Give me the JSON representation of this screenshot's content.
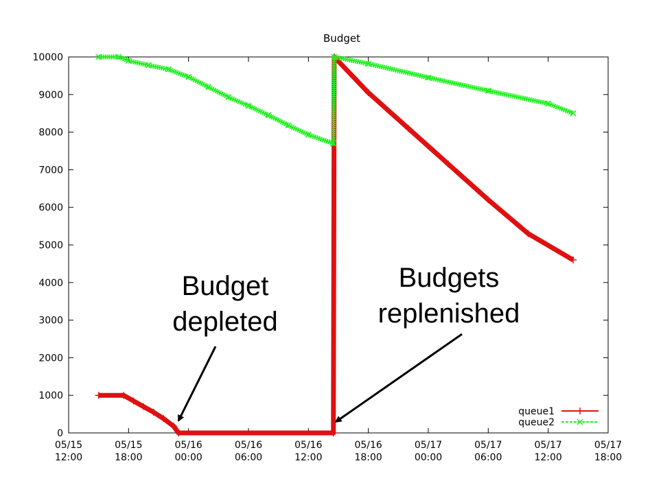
{
  "chart_data": {
    "type": "line",
    "title": "Budget",
    "xlabel": "",
    "ylabel": "",
    "x_range": [
      "05/15 12:00",
      "05/17 18:00"
    ],
    "ylim": [
      0,
      10000
    ],
    "grid": false,
    "legend_position": "bottom-right",
    "y_ticks": [
      "0",
      "1000",
      "2000",
      "3000",
      "4000",
      "5000",
      "6000",
      "7000",
      "8000",
      "9000",
      "10000"
    ],
    "y_tick_values": [
      0,
      1000,
      2000,
      3000,
      4000,
      5000,
      6000,
      7000,
      8000,
      9000,
      10000
    ],
    "x_ticks": [
      {
        "date": "05/15",
        "time": "12:00",
        "t": "2000-05-15T12:00"
      },
      {
        "date": "05/15",
        "time": "18:00",
        "t": "2000-05-15T18:00"
      },
      {
        "date": "05/16",
        "time": "00:00",
        "t": "2000-05-16T00:00"
      },
      {
        "date": "05/16",
        "time": "06:00",
        "t": "2000-05-16T06:00"
      },
      {
        "date": "05/16",
        "time": "12:00",
        "t": "2000-05-16T12:00"
      },
      {
        "date": "05/16",
        "time": "18:00",
        "t": "2000-05-16T18:00"
      },
      {
        "date": "05/17",
        "time": "00:00",
        "t": "2000-05-17T00:00"
      },
      {
        "date": "05/17",
        "time": "06:00",
        "t": "2000-05-17T06:00"
      },
      {
        "date": "05/17",
        "time": "12:00",
        "t": "2000-05-17T12:00"
      },
      {
        "date": "05/17",
        "time": "18:00",
        "t": "2000-05-17T18:00"
      }
    ],
    "series": [
      {
        "name": "queue1",
        "color": "#e01010",
        "marker": "+",
        "points": [
          [
            "2000-05-15T15:00",
            1000
          ],
          [
            "2000-05-15T17:30",
            1000
          ],
          [
            "2000-05-15T18:30",
            850
          ],
          [
            "2000-05-15T19:30",
            700
          ],
          [
            "2000-05-15T20:30",
            550
          ],
          [
            "2000-05-15T21:30",
            380
          ],
          [
            "2000-05-15T22:30",
            180
          ],
          [
            "2000-05-15T23:00",
            0
          ],
          [
            "2000-05-16T14:30",
            0
          ],
          [
            "2000-05-16T14:35",
            10000
          ],
          [
            "2000-05-16T18:00",
            9050
          ],
          [
            "2000-05-16T22:00",
            8100
          ],
          [
            "2000-05-17T02:00",
            7150
          ],
          [
            "2000-05-17T06:00",
            6200
          ],
          [
            "2000-05-17T10:00",
            5300
          ],
          [
            "2000-05-17T14:30",
            4600
          ]
        ]
      },
      {
        "name": "queue2",
        "color": "#22ee22",
        "marker": "x",
        "points": [
          [
            "2000-05-15T15:00",
            10000
          ],
          [
            "2000-05-15T17:00",
            10000
          ],
          [
            "2000-05-15T18:00",
            9900
          ],
          [
            "2000-05-15T20:00",
            9780
          ],
          [
            "2000-05-15T22:00",
            9670
          ],
          [
            "2000-05-16T00:00",
            9470
          ],
          [
            "2000-05-16T02:00",
            9200
          ],
          [
            "2000-05-16T04:00",
            8930
          ],
          [
            "2000-05-16T06:00",
            8700
          ],
          [
            "2000-05-16T08:00",
            8450
          ],
          [
            "2000-05-16T10:00",
            8180
          ],
          [
            "2000-05-16T12:00",
            7930
          ],
          [
            "2000-05-16T14:30",
            7700
          ],
          [
            "2000-05-16T14:35",
            10000
          ],
          [
            "2000-05-16T18:00",
            9820
          ],
          [
            "2000-05-17T00:00",
            9450
          ],
          [
            "2000-05-17T06:00",
            9100
          ],
          [
            "2000-05-17T12:00",
            8760
          ],
          [
            "2000-05-17T14:30",
            8500
          ]
        ]
      }
    ],
    "annotations": [
      {
        "lines": [
          "Budget",
          "depleted"
        ],
        "arrow_target": [
          "2000-05-15T23:00",
          180
        ]
      },
      {
        "lines": [
          "Budgets",
          "replenished"
        ],
        "arrow_target": [
          "2000-05-16T14:45",
          150
        ]
      }
    ]
  }
}
